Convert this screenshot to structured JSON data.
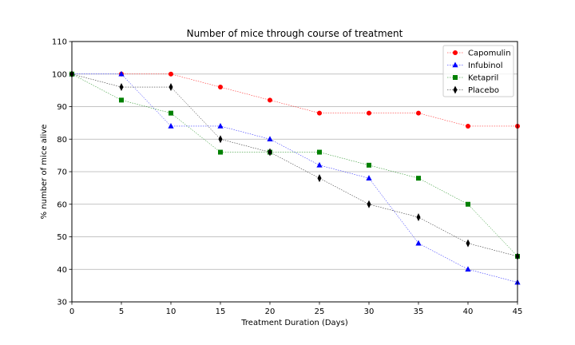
{
  "chart_data": {
    "type": "line",
    "title": "Number of mice through course of treatment",
    "xlabel": "Treatment Duration (Days)",
    "ylabel": "% number of mice alive",
    "x": [
      0,
      5,
      10,
      15,
      20,
      25,
      30,
      35,
      40,
      45
    ],
    "xlim": [
      0,
      45
    ],
    "ylim": [
      30,
      110
    ],
    "xticks": [
      0,
      5,
      10,
      15,
      20,
      25,
      30,
      35,
      40,
      45
    ],
    "yticks": [
      30,
      40,
      50,
      60,
      70,
      80,
      90,
      100,
      110
    ],
    "grid": "horizontal",
    "legend_position": "top-right",
    "series": [
      {
        "name": "Capomulin",
        "color": "#ff0000",
        "marker": "circle",
        "values": [
          100,
          100,
          100,
          96,
          92,
          88,
          88,
          88,
          84,
          84
        ]
      },
      {
        "name": "Infubinol",
        "color": "#0000ff",
        "marker": "triangle",
        "values": [
          100,
          100,
          84,
          84,
          80,
          72,
          68,
          48,
          40,
          36
        ]
      },
      {
        "name": "Ketapril",
        "color": "#008000",
        "marker": "square",
        "values": [
          100,
          92,
          88,
          76,
          76,
          76,
          72,
          68,
          60,
          44
        ]
      },
      {
        "name": "Placebo",
        "color": "#000000",
        "marker": "diamond",
        "values": [
          100,
          96,
          96,
          80,
          76,
          68,
          60,
          56,
          48,
          44
        ]
      }
    ]
  }
}
